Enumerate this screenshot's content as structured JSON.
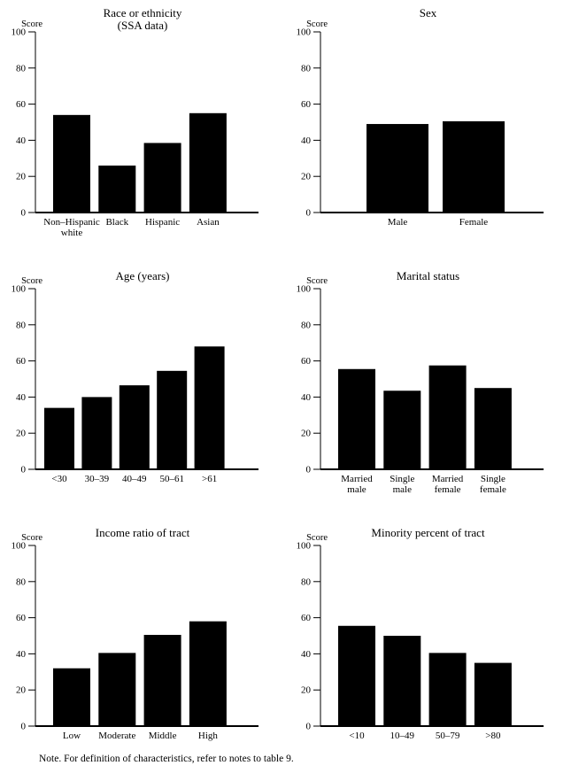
{
  "page": {
    "background": "#ffffff",
    "text_color": "#000000",
    "bar_color": "#000000",
    "note": "Note. For definition of characteristics, refer to notes to table 9."
  },
  "chart_data": [
    {
      "type": "bar",
      "title": "Race or ethnicity",
      "subtitle": "(SSA data)",
      "ylabel": "Score",
      "ylim": [
        0,
        100
      ],
      "yticks": [
        0,
        20,
        40,
        60,
        80,
        100
      ],
      "grid": "off",
      "categories": [
        "Non–Hispanic\nwhite",
        "Black",
        "Hispanic",
        "Asian"
      ],
      "values": [
        54,
        26,
        38.5,
        55
      ]
    },
    {
      "type": "bar",
      "title": "Sex",
      "ylabel": "Score",
      "ylim": [
        0,
        100
      ],
      "yticks": [
        0,
        20,
        40,
        60,
        80,
        100
      ],
      "grid": "off",
      "categories": [
        "Male",
        "Female"
      ],
      "values": [
        49,
        50.5
      ]
    },
    {
      "type": "bar",
      "title": "Age (years)",
      "ylabel": "Score",
      "ylim": [
        0,
        100
      ],
      "yticks": [
        0,
        20,
        40,
        60,
        80,
        100
      ],
      "grid": "off",
      "categories": [
        "<30",
        "30–39",
        "40–49",
        "50–61",
        ">61"
      ],
      "values": [
        34,
        40,
        46.5,
        54.5,
        68
      ]
    },
    {
      "type": "bar",
      "title": "Marital status",
      "ylabel": "Score",
      "ylim": [
        0,
        100
      ],
      "yticks": [
        0,
        20,
        40,
        60,
        80,
        100
      ],
      "grid": "off",
      "categories": [
        "Married\nmale",
        "Single\nmale",
        "Married\nfemale",
        "Single\nfemale"
      ],
      "values": [
        55.5,
        43.5,
        57.5,
        45
      ]
    },
    {
      "type": "bar",
      "title": "Income ratio of tract",
      "ylabel": "Score",
      "ylim": [
        0,
        100
      ],
      "yticks": [
        0,
        20,
        40,
        60,
        80,
        100
      ],
      "grid": "off",
      "categories": [
        "Low",
        "Moderate",
        "Middle",
        "High"
      ],
      "values": [
        32,
        40.5,
        50.5,
        58
      ]
    },
    {
      "type": "bar",
      "title": "Minority percent of tract",
      "ylabel": "Score",
      "ylim": [
        0,
        100
      ],
      "yticks": [
        0,
        20,
        40,
        60,
        80,
        100
      ],
      "grid": "off",
      "categories": [
        "<10",
        "10–49",
        "50–79",
        ">80"
      ],
      "values": [
        55.5,
        50,
        40.5,
        35
      ]
    }
  ]
}
